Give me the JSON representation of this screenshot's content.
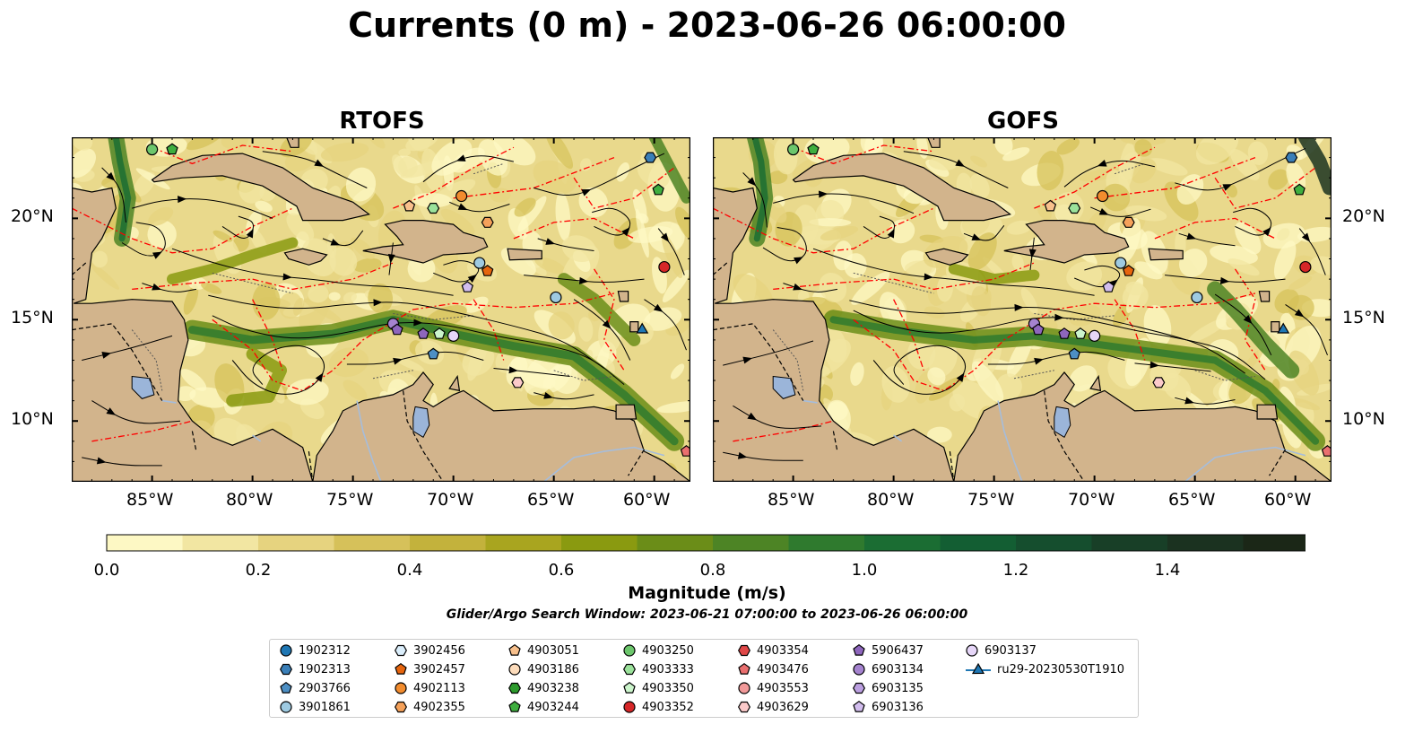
{
  "title": "Currents (0 m) - 2023-06-26 06:00:00",
  "panels": [
    {
      "title": "RTOFS"
    },
    {
      "title": "GOFS"
    }
  ],
  "lon_ticks": [
    "85°W",
    "80°W",
    "75°W",
    "70°W",
    "65°W",
    "60°W"
  ],
  "lat_ticks": [
    "20°N",
    "15°N",
    "10°N"
  ],
  "colorbar": {
    "label": "Magnitude (m/s)",
    "ticks": [
      "0.0",
      "0.2",
      "0.4",
      "0.6",
      "0.8",
      "1.0",
      "1.2",
      "1.4"
    ],
    "min": 0.0,
    "max": 1.6,
    "extend": "max",
    "colors": [
      "#fdf8c4",
      "#f2e6a2",
      "#e6d37f",
      "#d6c15a",
      "#c3b23c",
      "#a9a51f",
      "#8a9a10",
      "#6b8d18",
      "#4d8425",
      "#2f7a2e",
      "#1b6d33",
      "#135e33",
      "#154e2e",
      "#183f27",
      "#1b3220",
      "#1b2717"
    ]
  },
  "search_window": "Glider/Argo Search Window: 2023-06-21 07:00:00 to 2023-06-26 06:00:00",
  "map_colors": {
    "land": "#d2b48c",
    "lake": "#9bb5d9",
    "eez_line": "#ff0000",
    "streamline": "#000000"
  },
  "legend": [
    {
      "id": "1902312",
      "marker": "circle",
      "color": "#1f77b4"
    },
    {
      "id": "1902313",
      "marker": "hexagon",
      "color": "#3a7fb8"
    },
    {
      "id": "2903766",
      "marker": "pentagon",
      "color": "#4d8fc4"
    },
    {
      "id": "3901861",
      "marker": "circle",
      "color": "#9ecae1"
    },
    {
      "id": "3902456",
      "marker": "hexagon",
      "color": "#dbeefb"
    },
    {
      "id": "3902457",
      "marker": "pentagon",
      "color": "#e6650e"
    },
    {
      "id": "4902113",
      "marker": "circle",
      "color": "#f28c2e"
    },
    {
      "id": "4902355",
      "marker": "hexagon",
      "color": "#f5a15a"
    },
    {
      "id": "4903051",
      "marker": "pentagon",
      "color": "#f8c08c"
    },
    {
      "id": "4903186",
      "marker": "circle",
      "color": "#fddcbb"
    },
    {
      "id": "4903238",
      "marker": "hexagon",
      "color": "#2c9a2c"
    },
    {
      "id": "4903244",
      "marker": "pentagon",
      "color": "#3fae3f"
    },
    {
      "id": "4903250",
      "marker": "circle",
      "color": "#6cc66c"
    },
    {
      "id": "4903333",
      "marker": "hexagon",
      "color": "#9be29b"
    },
    {
      "id": "4903350",
      "marker": "pentagon",
      "color": "#ccf5cc"
    },
    {
      "id": "4903352",
      "marker": "circle",
      "color": "#d62728"
    },
    {
      "id": "4903354",
      "marker": "hexagon",
      "color": "#e04848"
    },
    {
      "id": "4903476",
      "marker": "pentagon",
      "color": "#ea6f6f"
    },
    {
      "id": "4903553",
      "marker": "circle",
      "color": "#f29a9a"
    },
    {
      "id": "4903629",
      "marker": "hexagon",
      "color": "#fbcaca"
    },
    {
      "id": "5906437",
      "marker": "pentagon",
      "color": "#8e66bd"
    },
    {
      "id": "6903134",
      "marker": "circle",
      "color": "#a583cf"
    },
    {
      "id": "6903135",
      "marker": "hexagon",
      "color": "#bb9fe0"
    },
    {
      "id": "6903136",
      "marker": "pentagon",
      "color": "#d2bdee"
    },
    {
      "id": "6903137",
      "marker": "circle",
      "color": "#e6d6f8"
    },
    {
      "id": "ru29-20230530T1910",
      "marker": "triangle",
      "color": "#1f77b4"
    }
  ],
  "observations": [
    {
      "id": "4903250",
      "lon": -85.0,
      "lat": 23.4
    },
    {
      "id": "4903244",
      "lon": -84.0,
      "lat": 23.4
    },
    {
      "id": "1902313",
      "lon": -60.2,
      "lat": 23.0
    },
    {
      "id": "4903244",
      "lon": -59.8,
      "lat": 21.4
    },
    {
      "id": "4902113",
      "lon": -69.6,
      "lat": 21.1
    },
    {
      "id": "4903051",
      "lon": -72.2,
      "lat": 20.6
    },
    {
      "id": "4903333",
      "lon": -71.0,
      "lat": 20.5
    },
    {
      "id": "4902355",
      "lon": -68.3,
      "lat": 19.8
    },
    {
      "id": "3901861",
      "lon": -68.7,
      "lat": 17.8
    },
    {
      "id": "3902457",
      "lon": -68.3,
      "lat": 17.4
    },
    {
      "id": "4903352",
      "lon": -59.5,
      "lat": 17.6
    },
    {
      "id": "6903136",
      "lon": -69.3,
      "lat": 16.6
    },
    {
      "id": "3901861",
      "lon": -64.9,
      "lat": 16.1
    },
    {
      "id": "6903134",
      "lon": -73.0,
      "lat": 14.8
    },
    {
      "id": "5906437",
      "lon": -72.8,
      "lat": 14.5
    },
    {
      "id": "5906437",
      "lon": -71.5,
      "lat": 14.3
    },
    {
      "id": "4903350",
      "lon": -70.7,
      "lat": 14.3
    },
    {
      "id": "6903137",
      "lon": -70.0,
      "lat": 14.2
    },
    {
      "id": "2903766",
      "lon": -71.0,
      "lat": 13.3
    },
    {
      "id": "ru29-20230530T1910",
      "lon": -60.6,
      "lat": 14.5
    },
    {
      "id": "4903629",
      "lon": -66.8,
      "lat": 11.9
    },
    {
      "id": "4903476",
      "lon": -58.4,
      "lat": 8.5
    }
  ]
}
